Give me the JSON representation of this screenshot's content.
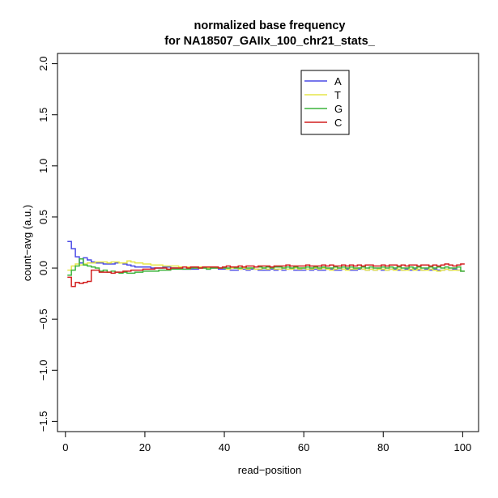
{
  "chart_data": {
    "type": "line",
    "step": true,
    "title": [
      "normalized base frequency",
      "for NA18507_GAIIx_100_chr21_stats_"
    ],
    "xlabel": "read−position",
    "ylabel": "count−avg (a.u.)",
    "xlim": [
      -2,
      104
    ],
    "ylim": [
      -1.6,
      2.1
    ],
    "xticks": [
      0,
      20,
      40,
      60,
      80,
      100
    ],
    "xtick_labels": [
      "0",
      "20",
      "40",
      "60",
      "80",
      "100"
    ],
    "yticks": [
      -1.5,
      -1.0,
      -0.5,
      0.0,
      0.5,
      1.0,
      1.5,
      2.0
    ],
    "ytick_labels": [
      "−1.5",
      "−1.0",
      "−0.5",
      "0.0",
      "0.5",
      "1.0",
      "1.5",
      "2.0"
    ],
    "grid": false,
    "legend_position": "top-right",
    "x": [
      1,
      2,
      3,
      4,
      5,
      6,
      7,
      8,
      9,
      10,
      11,
      12,
      13,
      14,
      15,
      16,
      17,
      18,
      19,
      20,
      21,
      22,
      23,
      24,
      25,
      26,
      27,
      28,
      29,
      30,
      31,
      32,
      33,
      34,
      35,
      36,
      37,
      38,
      39,
      40,
      41,
      42,
      43,
      44,
      45,
      46,
      47,
      48,
      49,
      50,
      51,
      52,
      53,
      54,
      55,
      56,
      57,
      58,
      59,
      60,
      61,
      62,
      63,
      64,
      65,
      66,
      67,
      68,
      69,
      70,
      71,
      72,
      73,
      74,
      75,
      76,
      77,
      78,
      79,
      80,
      81,
      82,
      83,
      84,
      85,
      86,
      87,
      88,
      89,
      90,
      91,
      92,
      93,
      94,
      95,
      96,
      97,
      98,
      99,
      100
    ],
    "series": [
      {
        "name": "A",
        "color": "#4a4ae6",
        "values": [
          0.26,
          0.19,
          0.11,
          0.05,
          0.1,
          0.08,
          0.06,
          0.05,
          0.05,
          0.04,
          0.04,
          0.04,
          0.05,
          0.05,
          0.04,
          0.03,
          0.02,
          0.01,
          0.01,
          0.01,
          0.01,
          0.0,
          0.0,
          0.0,
          0.01,
          0.01,
          0.0,
          0.0,
          0.0,
          -0.01,
          -0.01,
          -0.01,
          -0.01,
          0.0,
          0.0,
          -0.01,
          0.0,
          0.0,
          -0.01,
          -0.01,
          -0.01,
          -0.02,
          -0.02,
          -0.01,
          -0.01,
          -0.02,
          -0.01,
          -0.01,
          -0.02,
          -0.02,
          -0.02,
          -0.01,
          -0.02,
          -0.01,
          -0.02,
          -0.01,
          -0.01,
          -0.02,
          -0.02,
          -0.02,
          -0.01,
          -0.02,
          -0.01,
          -0.02,
          -0.02,
          -0.01,
          -0.01,
          -0.02,
          -0.02,
          -0.01,
          -0.01,
          -0.02,
          -0.02,
          -0.01,
          -0.01,
          -0.02,
          -0.01,
          -0.02,
          -0.01,
          -0.02,
          -0.02,
          -0.01,
          -0.01,
          -0.02,
          -0.02,
          -0.01,
          -0.02,
          -0.01,
          -0.02,
          -0.02,
          -0.01,
          -0.02,
          -0.01,
          -0.02,
          -0.02,
          -0.01,
          -0.02,
          -0.01,
          -0.02,
          -0.03
        ]
      },
      {
        "name": "T",
        "color": "#e6e64a",
        "values": [
          -0.02,
          0.02,
          0.04,
          0.03,
          0.04,
          0.05,
          0.05,
          0.06,
          0.06,
          0.06,
          0.05,
          0.06,
          0.06,
          0.05,
          0.05,
          0.07,
          0.06,
          0.05,
          0.05,
          0.04,
          0.04,
          0.03,
          0.03,
          0.03,
          0.02,
          0.02,
          0.02,
          0.02,
          0.01,
          0.01,
          0.01,
          0.01,
          0.0,
          0.01,
          0.0,
          0.0,
          0.01,
          0.0,
          0.0,
          0.0,
          -0.01,
          0.0,
          0.0,
          -0.01,
          0.0,
          -0.01,
          0.0,
          -0.01,
          -0.01,
          0.0,
          -0.01,
          0.0,
          -0.01,
          -0.01,
          0.0,
          -0.01,
          -0.01,
          0.0,
          -0.01,
          0.0,
          -0.01,
          -0.01,
          0.0,
          -0.01,
          0.0,
          -0.01,
          -0.02,
          -0.01,
          0.0,
          -0.01,
          -0.02,
          -0.01,
          -0.01,
          0.0,
          -0.01,
          -0.02,
          -0.01,
          -0.02,
          -0.01,
          -0.01,
          -0.02,
          -0.01,
          -0.02,
          -0.01,
          -0.02,
          -0.02,
          -0.01,
          -0.02,
          -0.01,
          -0.02,
          -0.02,
          -0.01,
          -0.02,
          -0.03,
          -0.02,
          -0.01,
          -0.02,
          -0.02,
          -0.02,
          -0.03
        ]
      },
      {
        "name": "G",
        "color": "#3cb43c",
        "values": [
          -0.07,
          -0.02,
          0.02,
          0.09,
          0.03,
          0.02,
          0.01,
          0.0,
          -0.03,
          -0.02,
          -0.04,
          -0.03,
          -0.04,
          -0.05,
          -0.04,
          -0.05,
          -0.05,
          -0.04,
          -0.04,
          -0.03,
          -0.03,
          -0.03,
          -0.03,
          -0.02,
          -0.02,
          -0.02,
          -0.01,
          -0.01,
          -0.01,
          -0.01,
          -0.01,
          0.0,
          0.0,
          0.0,
          0.0,
          -0.01,
          0.0,
          0.0,
          0.0,
          0.0,
          0.0,
          0.01,
          0.0,
          0.0,
          0.01,
          0.0,
          0.0,
          0.01,
          0.01,
          0.0,
          0.01,
          0.0,
          0.01,
          0.01,
          0.0,
          0.01,
          0.0,
          0.01,
          0.0,
          0.0,
          0.01,
          0.0,
          0.01,
          0.0,
          0.01,
          0.0,
          0.0,
          0.01,
          0.0,
          0.01,
          0.0,
          0.01,
          0.0,
          0.0,
          0.01,
          0.0,
          0.01,
          0.0,
          0.0,
          0.01,
          0.0,
          0.01,
          0.0,
          0.01,
          0.0,
          0.0,
          0.01,
          0.0,
          0.01,
          0.0,
          0.0,
          0.01,
          0.0,
          0.01,
          0.0,
          0.01,
          0.0,
          0.0,
          0.01,
          -0.03
        ]
      },
      {
        "name": "C",
        "color": "#d21e1e",
        "values": [
          -0.09,
          -0.18,
          -0.14,
          -0.15,
          -0.14,
          -0.13,
          -0.02,
          -0.02,
          -0.04,
          -0.04,
          -0.04,
          -0.05,
          -0.04,
          -0.04,
          -0.03,
          -0.03,
          -0.02,
          -0.02,
          -0.02,
          -0.01,
          -0.01,
          -0.01,
          0.0,
          0.0,
          0.0,
          -0.01,
          0.0,
          0.0,
          0.0,
          0.01,
          0.0,
          0.01,
          0.01,
          0.0,
          0.01,
          0.01,
          0.01,
          0.01,
          0.0,
          0.01,
          0.02,
          0.01,
          0.01,
          0.02,
          0.01,
          0.02,
          0.02,
          0.01,
          0.02,
          0.02,
          0.02,
          0.01,
          0.02,
          0.02,
          0.02,
          0.03,
          0.02,
          0.02,
          0.02,
          0.02,
          0.03,
          0.02,
          0.02,
          0.02,
          0.03,
          0.02,
          0.03,
          0.02,
          0.02,
          0.03,
          0.02,
          0.03,
          0.02,
          0.03,
          0.02,
          0.03,
          0.03,
          0.02,
          0.02,
          0.03,
          0.02,
          0.03,
          0.03,
          0.02,
          0.03,
          0.02,
          0.03,
          0.03,
          0.02,
          0.03,
          0.03,
          0.02,
          0.03,
          0.02,
          0.03,
          0.04,
          0.03,
          0.02,
          0.03,
          0.04
        ]
      }
    ]
  }
}
